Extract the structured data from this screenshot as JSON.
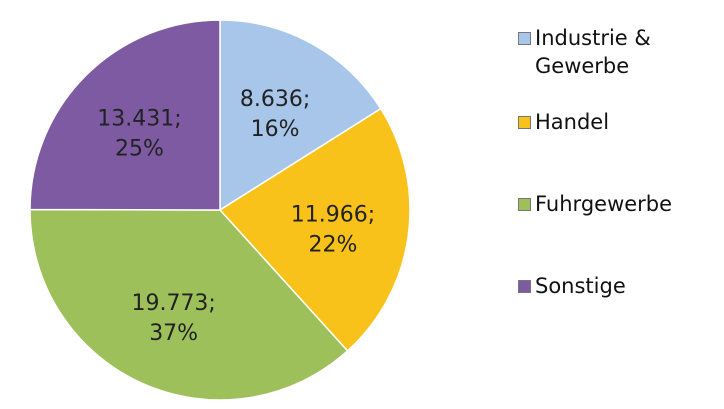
{
  "chart_data": {
    "type": "pie",
    "series": [
      {
        "names": [
          "Industrie & Gewerbe",
          "Handel",
          "Fuhrgewerbe",
          "Sonstige"
        ],
        "colors": [
          "#a7c6ea",
          "#f8c21a",
          "#9ec05a",
          "#7d5aa1"
        ],
        "values": [
          8636,
          11966,
          19773,
          13431
        ],
        "value_labels": [
          "8.636;",
          "11.966;",
          "19.773;",
          "13.431;"
        ],
        "percents": [
          16,
          22,
          37,
          25
        ],
        "percent_labels": [
          "16%",
          "22%",
          "37%",
          "25%"
        ]
      }
    ],
    "legend": "right"
  }
}
